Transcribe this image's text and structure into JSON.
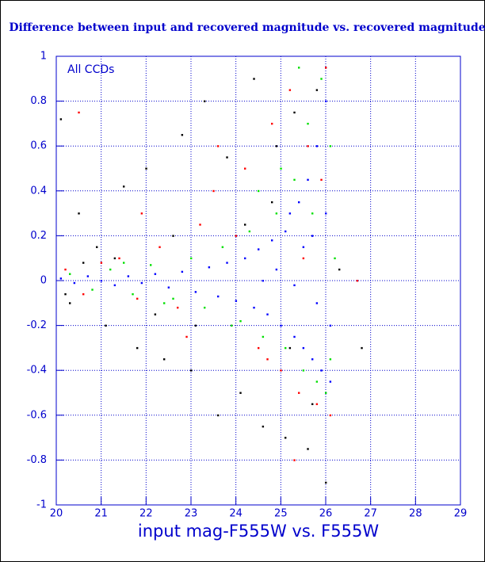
{
  "chart_data": {
    "type": "scatter",
    "title": "Difference between input and recovered magnitude vs. recovered magnitude",
    "x_label": "input mag-F555W vs. F555W",
    "annotation": "All CCDs",
    "xlim": [
      20,
      29
    ],
    "xticks": [
      20,
      21,
      22,
      23,
      24,
      25,
      26,
      27,
      28,
      29
    ],
    "ylim": [
      -1,
      1
    ],
    "yticks": [
      -1,
      -0.8,
      -0.6,
      -0.4,
      -0.2,
      0,
      0.2,
      0.4,
      0.6,
      0.8,
      1
    ],
    "grid": true,
    "series": [
      {
        "color": "#000000",
        "x": [
          20.1,
          20.3,
          20.5,
          20.9,
          21.1,
          21.5,
          21.8,
          22.0,
          22.4,
          22.8,
          23.0,
          23.3,
          23.6,
          23.8,
          24.1,
          24.4,
          24.6,
          24.9,
          25.1,
          25.3,
          25.6,
          25.8,
          26.0,
          20.2,
          20.6,
          21.3,
          22.2,
          23.1,
          24.2,
          25.2,
          26.3,
          26.8,
          25.7,
          24.8,
          22.6
        ],
        "values": [
          0.72,
          -0.1,
          0.3,
          0.15,
          -0.2,
          0.42,
          -0.3,
          0.5,
          -0.35,
          0.65,
          -0.4,
          0.8,
          -0.6,
          0.55,
          -0.5,
          0.9,
          -0.65,
          0.6,
          -0.7,
          0.75,
          -0.75,
          0.85,
          -0.9,
          -0.06,
          0.08,
          0.1,
          -0.15,
          -0.2,
          0.25,
          -0.3,
          0.05,
          -0.3,
          -0.55,
          0.35,
          0.2
        ]
      },
      {
        "color": "#ff0000",
        "x": [
          20.2,
          20.6,
          21.0,
          21.4,
          21.8,
          22.3,
          22.7,
          23.2,
          23.5,
          23.9,
          24.2,
          24.5,
          24.8,
          25.0,
          25.2,
          25.4,
          25.6,
          25.8,
          26.0,
          26.1,
          20.5,
          21.9,
          22.9,
          24.0,
          25.3,
          25.9,
          26.7,
          23.6,
          24.7,
          25.5
        ],
        "values": [
          0.05,
          -0.06,
          0.08,
          0.1,
          -0.08,
          0.15,
          -0.12,
          0.25,
          0.4,
          -0.2,
          0.5,
          -0.3,
          0.7,
          -0.4,
          0.85,
          -0.5,
          0.6,
          -0.55,
          0.95,
          -0.6,
          0.75,
          0.3,
          -0.25,
          0.2,
          -0.8,
          0.45,
          0.0,
          0.6,
          -0.35,
          0.1
        ]
      },
      {
        "color": "#00e000",
        "x": [
          20.3,
          20.8,
          21.2,
          21.7,
          22.1,
          22.6,
          23.0,
          23.3,
          23.7,
          24.1,
          24.3,
          24.6,
          24.9,
          25.1,
          25.3,
          25.5,
          25.6,
          25.8,
          25.9,
          26.0,
          26.1,
          26.1,
          25.4,
          25.0,
          24.5,
          22.4,
          21.5,
          23.9,
          25.7,
          26.2
        ],
        "values": [
          0.03,
          -0.04,
          0.05,
          -0.06,
          0.07,
          -0.08,
          0.1,
          -0.12,
          0.15,
          -0.18,
          0.22,
          -0.25,
          0.3,
          -0.3,
          0.45,
          -0.4,
          0.7,
          -0.45,
          0.9,
          -0.5,
          0.6,
          -0.35,
          0.95,
          0.5,
          0.4,
          -0.1,
          0.08,
          -0.2,
          0.3,
          0.1
        ]
      },
      {
        "color": "#0000ff",
        "x": [
          20.1,
          20.4,
          20.7,
          21.0,
          21.3,
          21.6,
          21.9,
          22.2,
          22.5,
          22.8,
          23.1,
          23.4,
          23.6,
          23.8,
          24.0,
          24.2,
          24.4,
          24.5,
          24.7,
          24.8,
          25.0,
          25.1,
          25.2,
          25.3,
          25.4,
          25.5,
          25.6,
          25.7,
          25.8,
          25.9,
          26.0,
          26.1,
          25.5,
          25.8,
          26.0,
          24.9,
          25.3,
          25.7,
          26.1,
          24.6
        ],
        "values": [
          0.01,
          -0.01,
          0.02,
          0.0,
          -0.02,
          0.02,
          -0.01,
          0.03,
          -0.03,
          0.04,
          -0.05,
          0.06,
          -0.07,
          0.08,
          -0.09,
          0.1,
          -0.12,
          0.14,
          -0.15,
          0.18,
          -0.2,
          0.22,
          0.3,
          -0.25,
          0.35,
          -0.3,
          0.45,
          -0.35,
          0.6,
          -0.4,
          0.8,
          -0.45,
          0.15,
          -0.1,
          0.3,
          0.05,
          -0.02,
          0.2,
          -0.2,
          0.0
        ]
      }
    ]
  }
}
